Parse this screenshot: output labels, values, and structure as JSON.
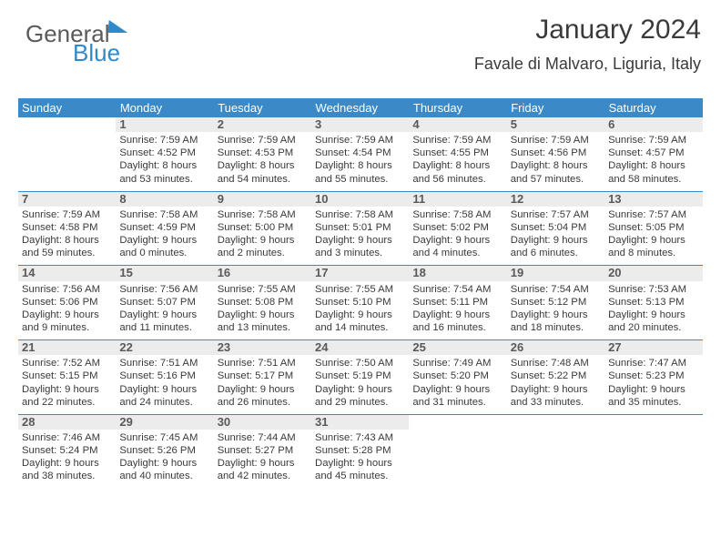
{
  "logo": {
    "part1": "General",
    "part2": "Blue"
  },
  "title": "January 2024",
  "location": "Favale di Malvaro, Liguria, Italy",
  "columns": [
    "Sunday",
    "Monday",
    "Tuesday",
    "Wednesday",
    "Thursday",
    "Friday",
    "Saturday"
  ],
  "colors": {
    "header_bg": "#3b89c6",
    "header_text": "#ffffff",
    "daybar_bg": "#ececec",
    "text_color": "#3a3a3a",
    "logo_gray": "#5a5a5a",
    "logo_blue": "#2f8acb"
  },
  "weeks": [
    [
      null,
      {
        "n": "1",
        "sr": "Sunrise: 7:59 AM",
        "ss": "Sunset: 4:52 PM",
        "d1": "Daylight: 8 hours",
        "d2": "and 53 minutes."
      },
      {
        "n": "2",
        "sr": "Sunrise: 7:59 AM",
        "ss": "Sunset: 4:53 PM",
        "d1": "Daylight: 8 hours",
        "d2": "and 54 minutes."
      },
      {
        "n": "3",
        "sr": "Sunrise: 7:59 AM",
        "ss": "Sunset: 4:54 PM",
        "d1": "Daylight: 8 hours",
        "d2": "and 55 minutes."
      },
      {
        "n": "4",
        "sr": "Sunrise: 7:59 AM",
        "ss": "Sunset: 4:55 PM",
        "d1": "Daylight: 8 hours",
        "d2": "and 56 minutes."
      },
      {
        "n": "5",
        "sr": "Sunrise: 7:59 AM",
        "ss": "Sunset: 4:56 PM",
        "d1": "Daylight: 8 hours",
        "d2": "and 57 minutes."
      },
      {
        "n": "6",
        "sr": "Sunrise: 7:59 AM",
        "ss": "Sunset: 4:57 PM",
        "d1": "Daylight: 8 hours",
        "d2": "and 58 minutes."
      }
    ],
    [
      {
        "n": "7",
        "sr": "Sunrise: 7:59 AM",
        "ss": "Sunset: 4:58 PM",
        "d1": "Daylight: 8 hours",
        "d2": "and 59 minutes."
      },
      {
        "n": "8",
        "sr": "Sunrise: 7:58 AM",
        "ss": "Sunset: 4:59 PM",
        "d1": "Daylight: 9 hours",
        "d2": "and 0 minutes."
      },
      {
        "n": "9",
        "sr": "Sunrise: 7:58 AM",
        "ss": "Sunset: 5:00 PM",
        "d1": "Daylight: 9 hours",
        "d2": "and 2 minutes."
      },
      {
        "n": "10",
        "sr": "Sunrise: 7:58 AM",
        "ss": "Sunset: 5:01 PM",
        "d1": "Daylight: 9 hours",
        "d2": "and 3 minutes."
      },
      {
        "n": "11",
        "sr": "Sunrise: 7:58 AM",
        "ss": "Sunset: 5:02 PM",
        "d1": "Daylight: 9 hours",
        "d2": "and 4 minutes."
      },
      {
        "n": "12",
        "sr": "Sunrise: 7:57 AM",
        "ss": "Sunset: 5:04 PM",
        "d1": "Daylight: 9 hours",
        "d2": "and 6 minutes."
      },
      {
        "n": "13",
        "sr": "Sunrise: 7:57 AM",
        "ss": "Sunset: 5:05 PM",
        "d1": "Daylight: 9 hours",
        "d2": "and 8 minutes."
      }
    ],
    [
      {
        "n": "14",
        "sr": "Sunrise: 7:56 AM",
        "ss": "Sunset: 5:06 PM",
        "d1": "Daylight: 9 hours",
        "d2": "and 9 minutes."
      },
      {
        "n": "15",
        "sr": "Sunrise: 7:56 AM",
        "ss": "Sunset: 5:07 PM",
        "d1": "Daylight: 9 hours",
        "d2": "and 11 minutes."
      },
      {
        "n": "16",
        "sr": "Sunrise: 7:55 AM",
        "ss": "Sunset: 5:08 PM",
        "d1": "Daylight: 9 hours",
        "d2": "and 13 minutes."
      },
      {
        "n": "17",
        "sr": "Sunrise: 7:55 AM",
        "ss": "Sunset: 5:10 PM",
        "d1": "Daylight: 9 hours",
        "d2": "and 14 minutes."
      },
      {
        "n": "18",
        "sr": "Sunrise: 7:54 AM",
        "ss": "Sunset: 5:11 PM",
        "d1": "Daylight: 9 hours",
        "d2": "and 16 minutes."
      },
      {
        "n": "19",
        "sr": "Sunrise: 7:54 AM",
        "ss": "Sunset: 5:12 PM",
        "d1": "Daylight: 9 hours",
        "d2": "and 18 minutes."
      },
      {
        "n": "20",
        "sr": "Sunrise: 7:53 AM",
        "ss": "Sunset: 5:13 PM",
        "d1": "Daylight: 9 hours",
        "d2": "and 20 minutes."
      }
    ],
    [
      {
        "n": "21",
        "sr": "Sunrise: 7:52 AM",
        "ss": "Sunset: 5:15 PM",
        "d1": "Daylight: 9 hours",
        "d2": "and 22 minutes."
      },
      {
        "n": "22",
        "sr": "Sunrise: 7:51 AM",
        "ss": "Sunset: 5:16 PM",
        "d1": "Daylight: 9 hours",
        "d2": "and 24 minutes."
      },
      {
        "n": "23",
        "sr": "Sunrise: 7:51 AM",
        "ss": "Sunset: 5:17 PM",
        "d1": "Daylight: 9 hours",
        "d2": "and 26 minutes."
      },
      {
        "n": "24",
        "sr": "Sunrise: 7:50 AM",
        "ss": "Sunset: 5:19 PM",
        "d1": "Daylight: 9 hours",
        "d2": "and 29 minutes."
      },
      {
        "n": "25",
        "sr": "Sunrise: 7:49 AM",
        "ss": "Sunset: 5:20 PM",
        "d1": "Daylight: 9 hours",
        "d2": "and 31 minutes."
      },
      {
        "n": "26",
        "sr": "Sunrise: 7:48 AM",
        "ss": "Sunset: 5:22 PM",
        "d1": "Daylight: 9 hours",
        "d2": "and 33 minutes."
      },
      {
        "n": "27",
        "sr": "Sunrise: 7:47 AM",
        "ss": "Sunset: 5:23 PM",
        "d1": "Daylight: 9 hours",
        "d2": "and 35 minutes."
      }
    ],
    [
      {
        "n": "28",
        "sr": "Sunrise: 7:46 AM",
        "ss": "Sunset: 5:24 PM",
        "d1": "Daylight: 9 hours",
        "d2": "and 38 minutes."
      },
      {
        "n": "29",
        "sr": "Sunrise: 7:45 AM",
        "ss": "Sunset: 5:26 PM",
        "d1": "Daylight: 9 hours",
        "d2": "and 40 minutes."
      },
      {
        "n": "30",
        "sr": "Sunrise: 7:44 AM",
        "ss": "Sunset: 5:27 PM",
        "d1": "Daylight: 9 hours",
        "d2": "and 42 minutes."
      },
      {
        "n": "31",
        "sr": "Sunrise: 7:43 AM",
        "ss": "Sunset: 5:28 PM",
        "d1": "Daylight: 9 hours",
        "d2": "and 45 minutes."
      },
      null,
      null,
      null
    ]
  ]
}
